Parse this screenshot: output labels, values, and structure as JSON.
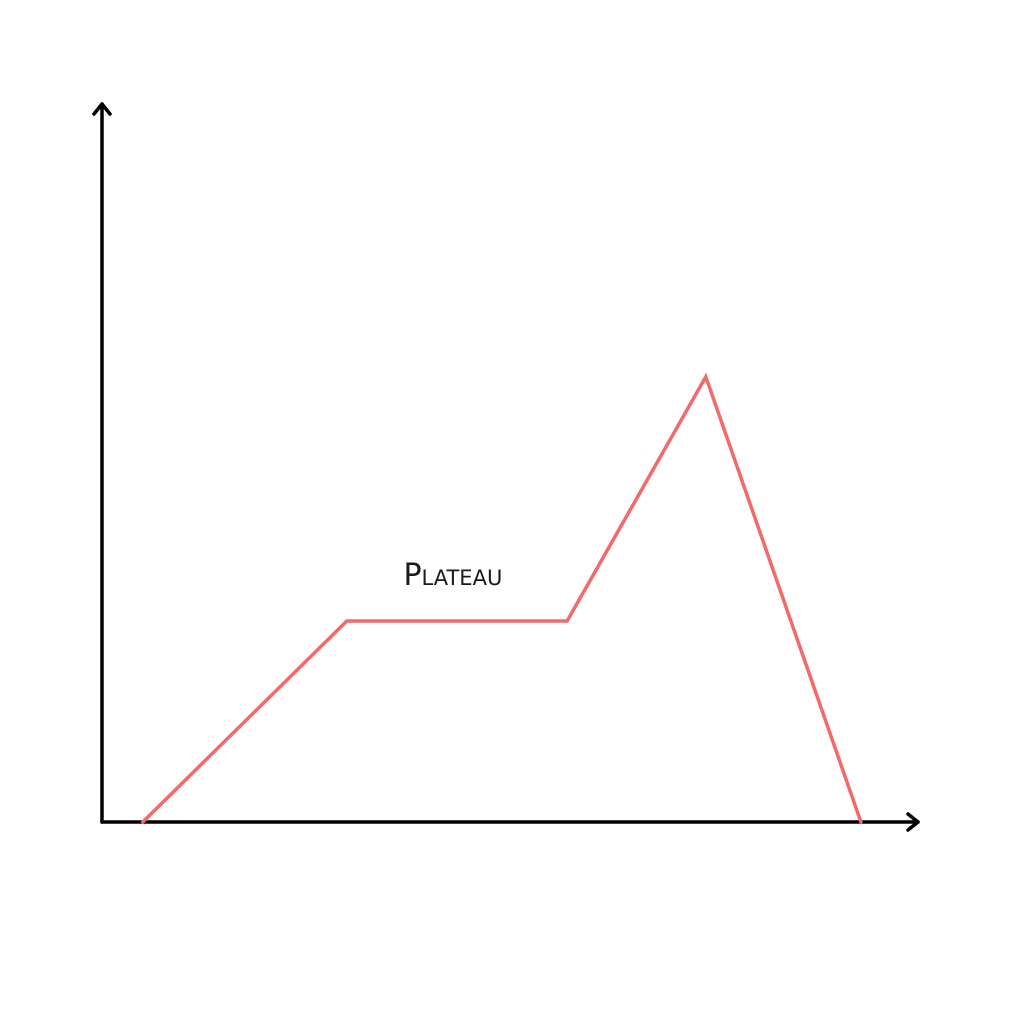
{
  "chart_data": {
    "type": "line",
    "title": "",
    "xlabel": "",
    "ylabel": "",
    "xlim": [
      0,
      100
    ],
    "ylim": [
      0,
      100
    ],
    "grid": false,
    "ticks": false,
    "colors": {
      "axis": "#000000",
      "series": "#f26a6a"
    },
    "series": [
      {
        "x": [
          5,
          30,
          57,
          74,
          93
        ],
        "y": [
          0,
          28,
          28,
          62,
          0
        ]
      }
    ],
    "annotations": [
      {
        "text": "Plateau",
        "x": 43,
        "y": 33
      }
    ]
  }
}
